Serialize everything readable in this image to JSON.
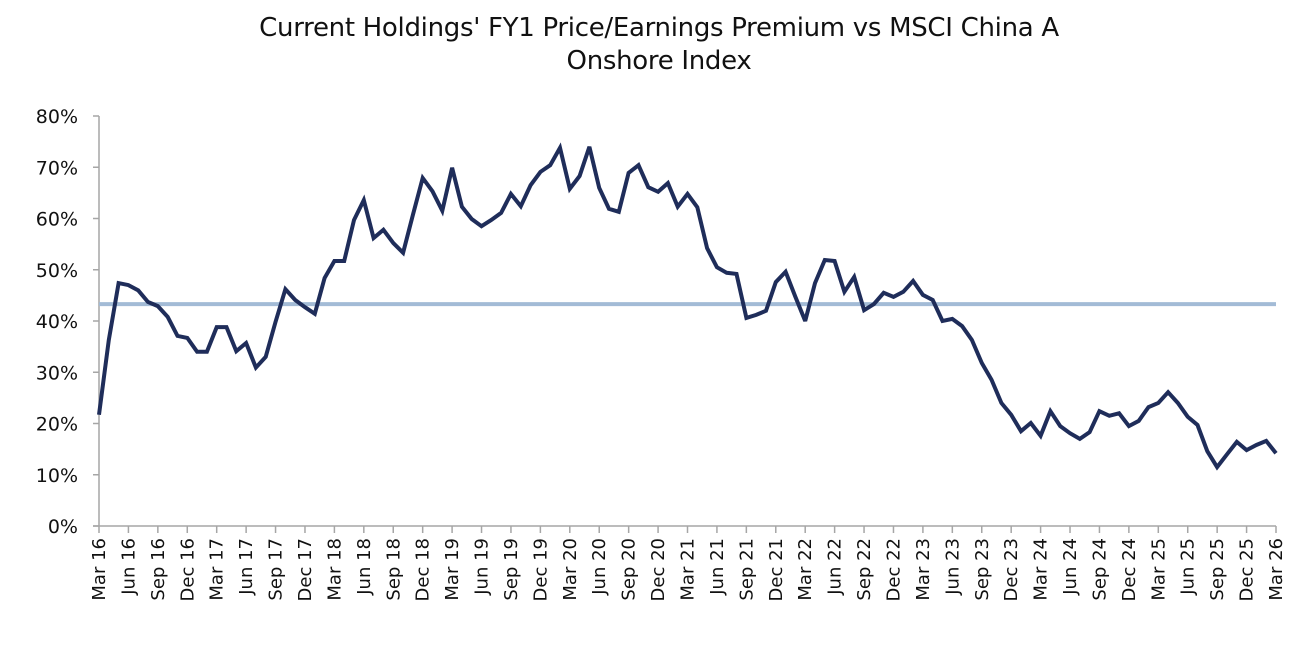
{
  "chart_data": {
    "type": "line",
    "title_lines": [
      "Current Holdings' FY1 Price/Earnings Premium vs MSCI China A",
      "Onshore Index"
    ],
    "xlabel": "",
    "ylabel": "",
    "ylim": [
      0,
      80
    ],
    "y_ticks": [
      "0%",
      "10%",
      "20%",
      "30%",
      "40%",
      "50%",
      "60%",
      "70%",
      "80%"
    ],
    "y_tick_values": [
      0,
      10,
      20,
      30,
      40,
      50,
      60,
      70,
      80
    ],
    "x_tick_labels": [
      "Mar 16",
      "Jun 16",
      "Sep 16",
      "Dec 16",
      "Mar 17",
      "Jun 17",
      "Sep 17",
      "Dec 17",
      "Mar 18",
      "Jun 18",
      "Sep 18",
      "Dec 18",
      "Mar 19",
      "Jun 19",
      "Sep 19",
      "Dec 19",
      "Mar 20",
      "Jun 20",
      "Sep 20",
      "Dec 20",
      "Mar 21",
      "Jun 21",
      "Sep 21",
      "Dec 21",
      "Mar 22",
      "Jun 22",
      "Sep 22",
      "Dec 22",
      "Mar 23",
      "Jun 23",
      "Sep 23",
      "Dec 23",
      "Mar 24",
      "Jun 24",
      "Sep 24",
      "Dec 24",
      "Mar 25",
      "Jun 25",
      "Sep 25",
      "Dec 25",
      "Mar 26"
    ],
    "x_tick_every_months": 3,
    "x_range_months": [
      0,
      120
    ],
    "grid": false,
    "legend": "none",
    "series": [
      {
        "name": "FY1 P/E Premium",
        "color": "#1F2D5A",
        "frequency": "monthly",
        "start": "Mar 16",
        "values": [
          21.7,
          36.3,
          47.4,
          47.0,
          46.0,
          43.7,
          42.9,
          40.8,
          37.1,
          36.7,
          34.0,
          34.0,
          38.8,
          38.8,
          34.1,
          35.7,
          30.9,
          33.0,
          39.8,
          46.2,
          44.1,
          42.7,
          41.4,
          48.4,
          51.7,
          51.7,
          59.7,
          63.6,
          56.2,
          57.8,
          55.2,
          53.3,
          60.7,
          67.9,
          65.3,
          61.5,
          69.9,
          62.3,
          59.9,
          58.5,
          59.7,
          61.1,
          64.8,
          62.4,
          66.5,
          69.1,
          70.4,
          73.8,
          65.8,
          68.3,
          74.0,
          66.0,
          61.9,
          61.3,
          68.9,
          70.4,
          66.1,
          65.2,
          66.9,
          62.3,
          64.8,
          62.2,
          54.2,
          50.5,
          49.4,
          49.2,
          40.6,
          41.2,
          42.0,
          47.6,
          49.6,
          44.7,
          40.0,
          47.4,
          51.9,
          51.7,
          45.7,
          48.6,
          42.1,
          43.3,
          45.5,
          44.7,
          45.7,
          47.8,
          45.1,
          44.1,
          40.0,
          40.4,
          39.0,
          36.3,
          31.8,
          28.5,
          24.0,
          21.7,
          18.5,
          20.1,
          17.6,
          22.4,
          19.5,
          18.1,
          17.0,
          18.3,
          22.4,
          21.5,
          22.0,
          19.5,
          20.5,
          23.2,
          24.0,
          26.1,
          24.0,
          21.3,
          19.7,
          14.6,
          11.5,
          14.0,
          16.4,
          14.8,
          15.8,
          16.6,
          14.2
        ]
      },
      {
        "name": "Average",
        "color": "#A3BBD6",
        "type": "horizontal-line",
        "value": 43.3
      }
    ]
  }
}
